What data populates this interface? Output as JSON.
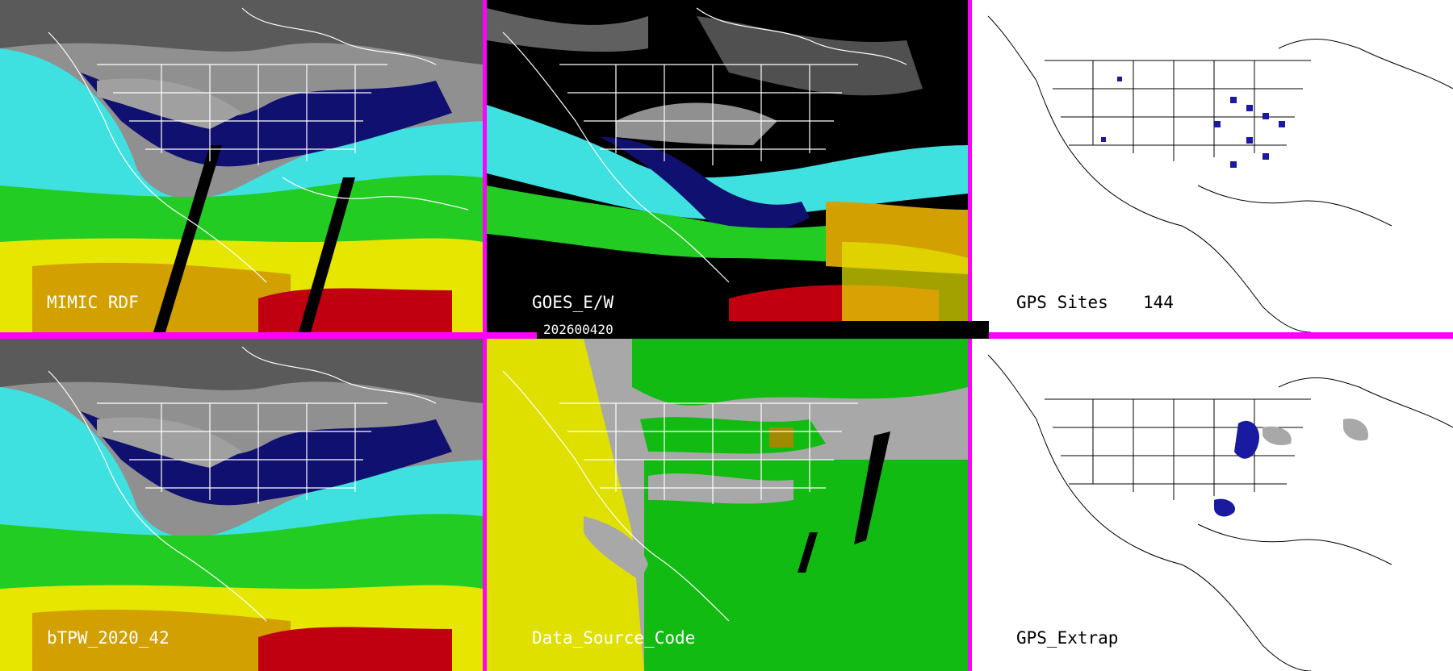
{
  "panels": [
    {
      "id": "mimic",
      "label": "MIMIC RDF"
    },
    {
      "id": "goes",
      "label": "GOES_E/W"
    },
    {
      "id": "gps_sites",
      "label": "GPS Sites",
      "count": "144"
    },
    {
      "id": "btpw",
      "label": "bTPW_2020_42"
    },
    {
      "id": "dsc",
      "label": "Data_Source_Code"
    },
    {
      "id": "gps_extrap",
      "label": "GPS_Extrap"
    }
  ],
  "date": "202600420",
  "colors": {
    "frame": "#ff00ff",
    "tpw_dry": "#101070",
    "tpw_low": "#2a2ab0",
    "tpw_cyan": "#3fe0e0",
    "tpw_green": "#22cc22",
    "tpw_yellow": "#e6e600",
    "tpw_orange": "#d2a000",
    "tpw_red": "#c00010",
    "dsc_gray": "#a8a8a8",
    "dsc_yellow": "#e0e000",
    "dsc_green": "#11bb11",
    "dsc_olive": "#a08a00",
    "gps_site": "#1a1aa0"
  }
}
